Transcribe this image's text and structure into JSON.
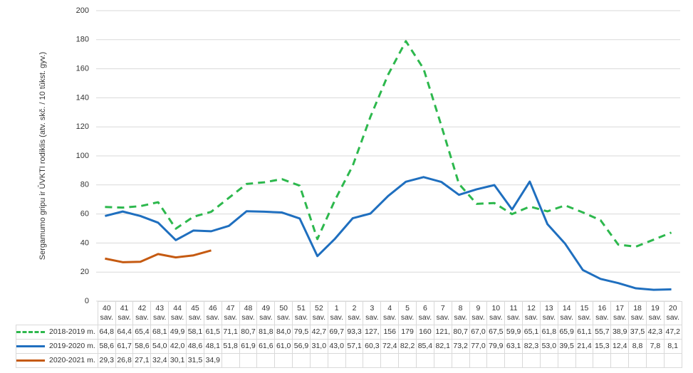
{
  "chart_data": {
    "type": "line",
    "ylabel": "Sergamumo gripu ir ŪVKTI rodiklis (atv. skč. / 10 tūkst. gyv.)",
    "categories": [
      "40 sav.",
      "41 sav.",
      "42 sav.",
      "43 sav.",
      "44 sav.",
      "45 sav.",
      "46 sav.",
      "47 sav.",
      "48 sav.",
      "49 sav.",
      "50 sav.",
      "51 sav.",
      "52 sav.",
      "1 sav.",
      "2 sav.",
      "3 sav.",
      "4 sav.",
      "5 sav.",
      "6 sav.",
      "7 sav.",
      "8 sav.",
      "9 sav.",
      "10 sav.",
      "11 sav.",
      "12 sav.",
      "13 sav.",
      "14 sav.",
      "15 sav.",
      "16 sav.",
      "17 sav.",
      "18 sav.",
      "19 sav.",
      "20 sav."
    ],
    "ylim": [
      0,
      200
    ],
    "yticks": [
      0,
      20,
      40,
      60,
      80,
      100,
      120,
      140,
      160,
      180,
      200
    ],
    "grid": true,
    "series": [
      {
        "name": "2018-2019 m.",
        "color": "#2db84d",
        "dashed": true,
        "values": [
          64.8,
          64.4,
          65.4,
          68.1,
          49.9,
          58.1,
          61.5,
          71.1,
          80.7,
          81.8,
          84.0,
          79.5,
          42.7,
          69.7,
          93.3,
          127,
          156,
          179,
          160,
          121,
          80.7,
          67.0,
          67.5,
          59.9,
          65.1,
          61.8,
          65.9,
          61.1,
          55.7,
          38.9,
          37.5,
          42.3,
          47.2
        ],
        "value_labels": [
          "64,8",
          "64,4",
          "65,4",
          "68,1",
          "49,9",
          "58,1",
          "61,5",
          "71,1",
          "80,7",
          "81,8",
          "84,0",
          "79,5",
          "42,7",
          "69,7",
          "93,3",
          "127,",
          "156",
          "179",
          "160",
          "121,",
          "80,7",
          "67,0",
          "67,5",
          "59,9",
          "65,1",
          "61,8",
          "65,9",
          "61,1",
          "55,7",
          "38,9",
          "37,5",
          "42,3",
          "47,2"
        ]
      },
      {
        "name": "2019-2020 m.",
        "color": "#1f6fbf",
        "dashed": false,
        "values": [
          58.6,
          61.7,
          58.6,
          54.0,
          42.0,
          48.6,
          48.1,
          51.8,
          61.9,
          61.6,
          61.0,
          56.9,
          31.0,
          43.0,
          57.1,
          60.3,
          72.4,
          82.2,
          85.4,
          82.1,
          73.2,
          77.0,
          79.9,
          63.1,
          82.3,
          53.0,
          39.5,
          21.4,
          15.3,
          12.4,
          8.8,
          7.8,
          8.1
        ],
        "value_labels": [
          "58,6",
          "61,7",
          "58,6",
          "54,0",
          "42,0",
          "48,6",
          "48,1",
          "51,8",
          "61,9",
          "61,6",
          "61,0",
          "56,9",
          "31,0",
          "43,0",
          "57,1",
          "60,3",
          "72,4",
          "82,2",
          "85,4",
          "82,1",
          "73,2",
          "77,0",
          "79,9",
          "63,1",
          "82,3",
          "53,0",
          "39,5",
          "21,4",
          "15,3",
          "12,4",
          "8,8",
          "7,8",
          "8,1"
        ]
      },
      {
        "name": "2020-2021 m.",
        "color": "#c55a11",
        "dashed": false,
        "values": [
          29.3,
          26.8,
          27.1,
          32.4,
          30.1,
          31.5,
          34.9,
          null,
          null,
          null,
          null,
          null,
          null,
          null,
          null,
          null,
          null,
          null,
          null,
          null,
          null,
          null,
          null,
          null,
          null,
          null,
          null,
          null,
          null,
          null,
          null,
          null,
          null
        ],
        "value_labels": [
          "29,3",
          "26,8",
          "27,1",
          "32,4",
          "30,1",
          "31,5",
          "34,9",
          null,
          null,
          null,
          null,
          null,
          null,
          null,
          null,
          null,
          null,
          null,
          null,
          null,
          null,
          null,
          null,
          null,
          null,
          null,
          null,
          null,
          null,
          null,
          null,
          null,
          null
        ]
      }
    ]
  }
}
